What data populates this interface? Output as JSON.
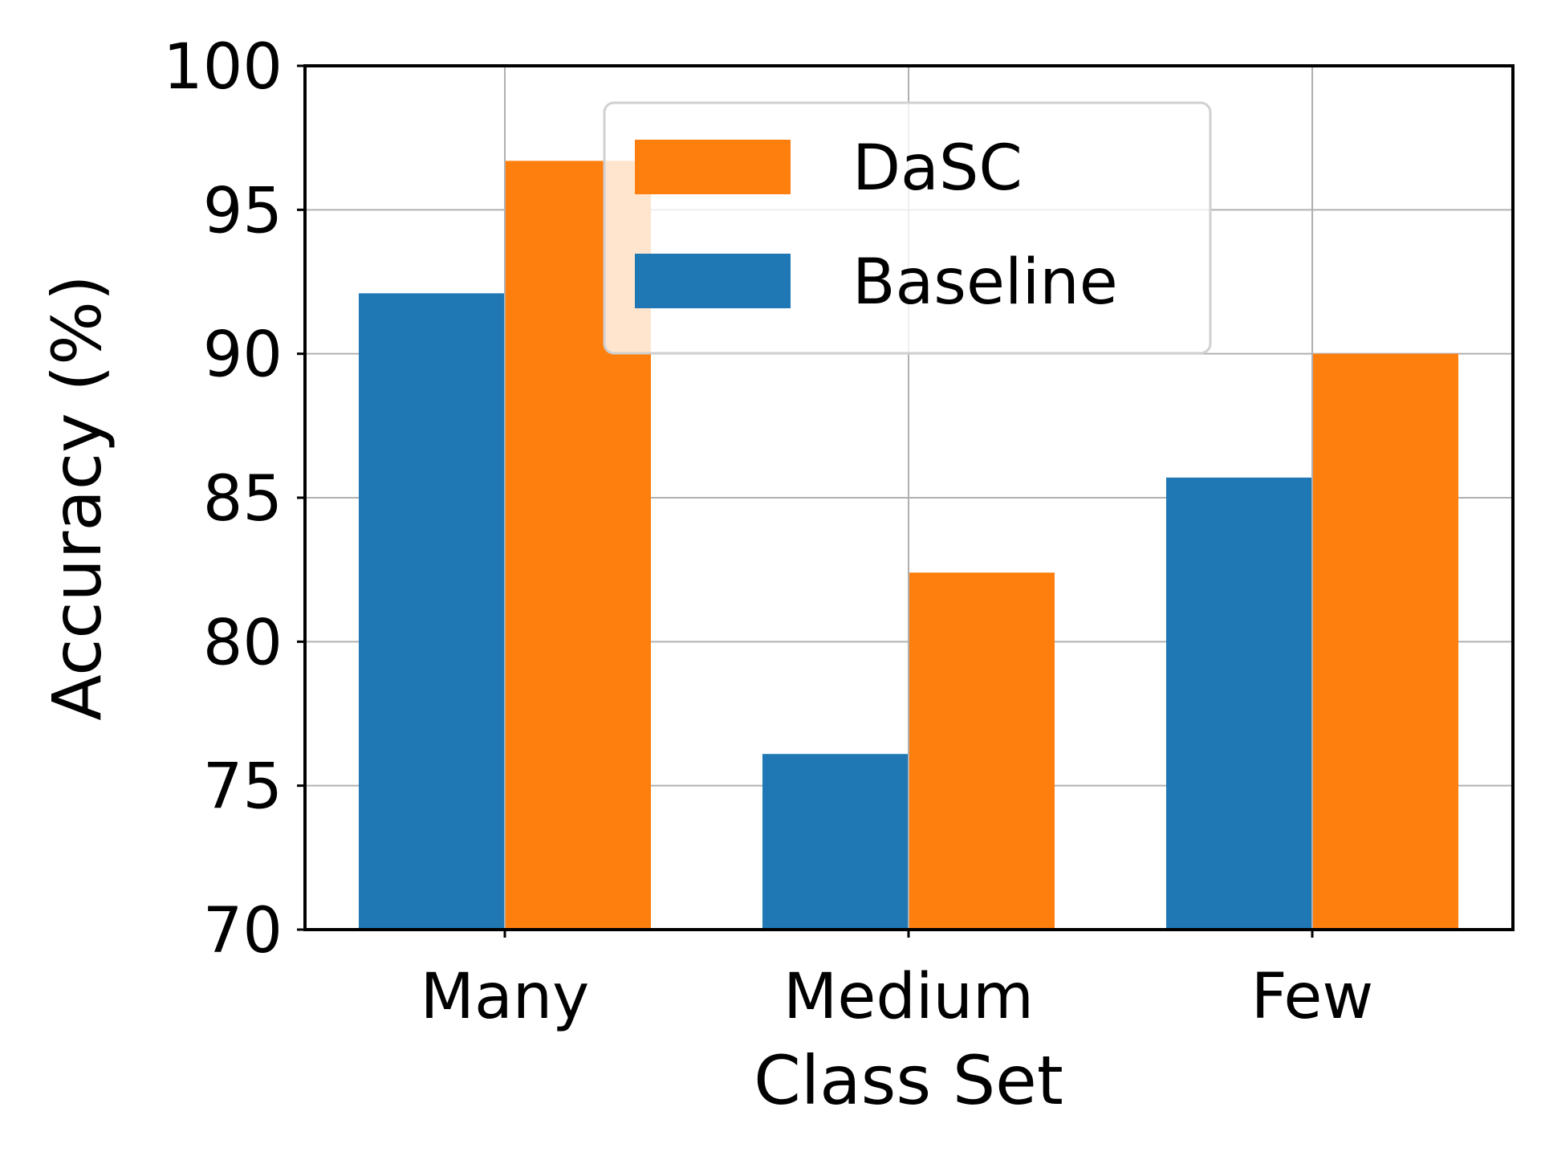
{
  "chart_data": {
    "type": "bar",
    "title": "",
    "xlabel": "Class Set",
    "ylabel": "Accuracy (%)",
    "categories": [
      "Many",
      "Medium",
      "Few"
    ],
    "ylim": [
      70,
      100
    ],
    "yticks": [
      70,
      75,
      80,
      85,
      90,
      95,
      100
    ],
    "grid": true,
    "legend_position": "top-center",
    "series": [
      {
        "name": "Baseline",
        "color": "#1f77b4",
        "values": [
          92.1,
          76.1,
          85.7
        ]
      },
      {
        "name": "DaSC",
        "color": "#ff7f0e",
        "values": [
          96.7,
          82.4,
          90.0
        ]
      }
    ],
    "legend_order": [
      "DaSC",
      "Baseline"
    ]
  }
}
